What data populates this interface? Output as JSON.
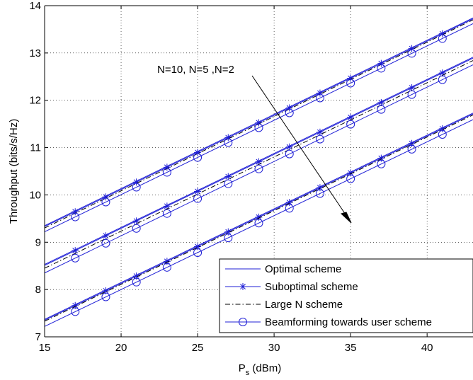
{
  "chart_data": {
    "type": "line",
    "title": "",
    "xlabel": "P",
    "xlabel_sub": "s",
    "xlabel_unit": " (dBm)",
    "ylabel": "Throughput (bits/s/Hz)",
    "xlim": [
      15,
      43
    ],
    "ylim": [
      7,
      14
    ],
    "xticks": [
      15,
      20,
      25,
      30,
      35,
      40
    ],
    "yticks": [
      7,
      8,
      9,
      10,
      11,
      12,
      13,
      14
    ],
    "grid": "dotted",
    "legend_position": "bottom-right",
    "annotation": "N=10, N=5 ,N=2",
    "colors": {
      "line": "#1f1fd6",
      "dashdot": "#000000"
    },
    "legend": [
      {
        "label": "Optimal scheme",
        "style": "solid"
      },
      {
        "label": "Suboptimal scheme",
        "style": "star"
      },
      {
        "label": "Large N scheme",
        "style": "dashdot"
      },
      {
        "label": "Beamforming towards user scheme",
        "style": "circle"
      }
    ],
    "marker_x": [
      17,
      19,
      21,
      23,
      25,
      27,
      29,
      31,
      33,
      35,
      37,
      39,
      41
    ],
    "groups": [
      {
        "N": 10,
        "series": [
          {
            "scheme": "optimal",
            "x": [
              15,
              43
            ],
            "y": [
              9.35,
              13.74
            ]
          },
          {
            "scheme": "suboptimal",
            "x": [
              15,
              43
            ],
            "y": [
              9.33,
              13.72
            ]
          },
          {
            "scheme": "largeN",
            "x": [
              15,
              43
            ],
            "y": [
              9.3,
              13.7
            ]
          },
          {
            "scheme": "beamforming",
            "x": [
              15,
              43
            ],
            "y": [
              9.22,
              13.62
            ]
          }
        ]
      },
      {
        "N": 5,
        "series": [
          {
            "scheme": "optimal",
            "x": [
              15,
              43
            ],
            "y": [
              8.53,
              12.91
            ]
          },
          {
            "scheme": "suboptimal",
            "x": [
              15,
              43
            ],
            "y": [
              8.51,
              12.89
            ]
          },
          {
            "scheme": "largeN",
            "x": [
              15,
              43
            ],
            "y": [
              8.45,
              12.84
            ]
          },
          {
            "scheme": "beamforming",
            "x": [
              15,
              43
            ],
            "y": [
              8.35,
              12.75
            ]
          }
        ]
      },
      {
        "N": 2,
        "series": [
          {
            "scheme": "optimal",
            "x": [
              15,
              43
            ],
            "y": [
              7.37,
              11.73
            ]
          },
          {
            "scheme": "suboptimal",
            "x": [
              15,
              43
            ],
            "y": [
              7.35,
              11.71
            ]
          },
          {
            "scheme": "largeN",
            "x": [
              15,
              43
            ],
            "y": [
              7.33,
              11.69
            ]
          },
          {
            "scheme": "beamforming",
            "x": [
              15,
              43
            ],
            "y": [
              7.22,
              11.59
            ]
          }
        ]
      }
    ]
  }
}
